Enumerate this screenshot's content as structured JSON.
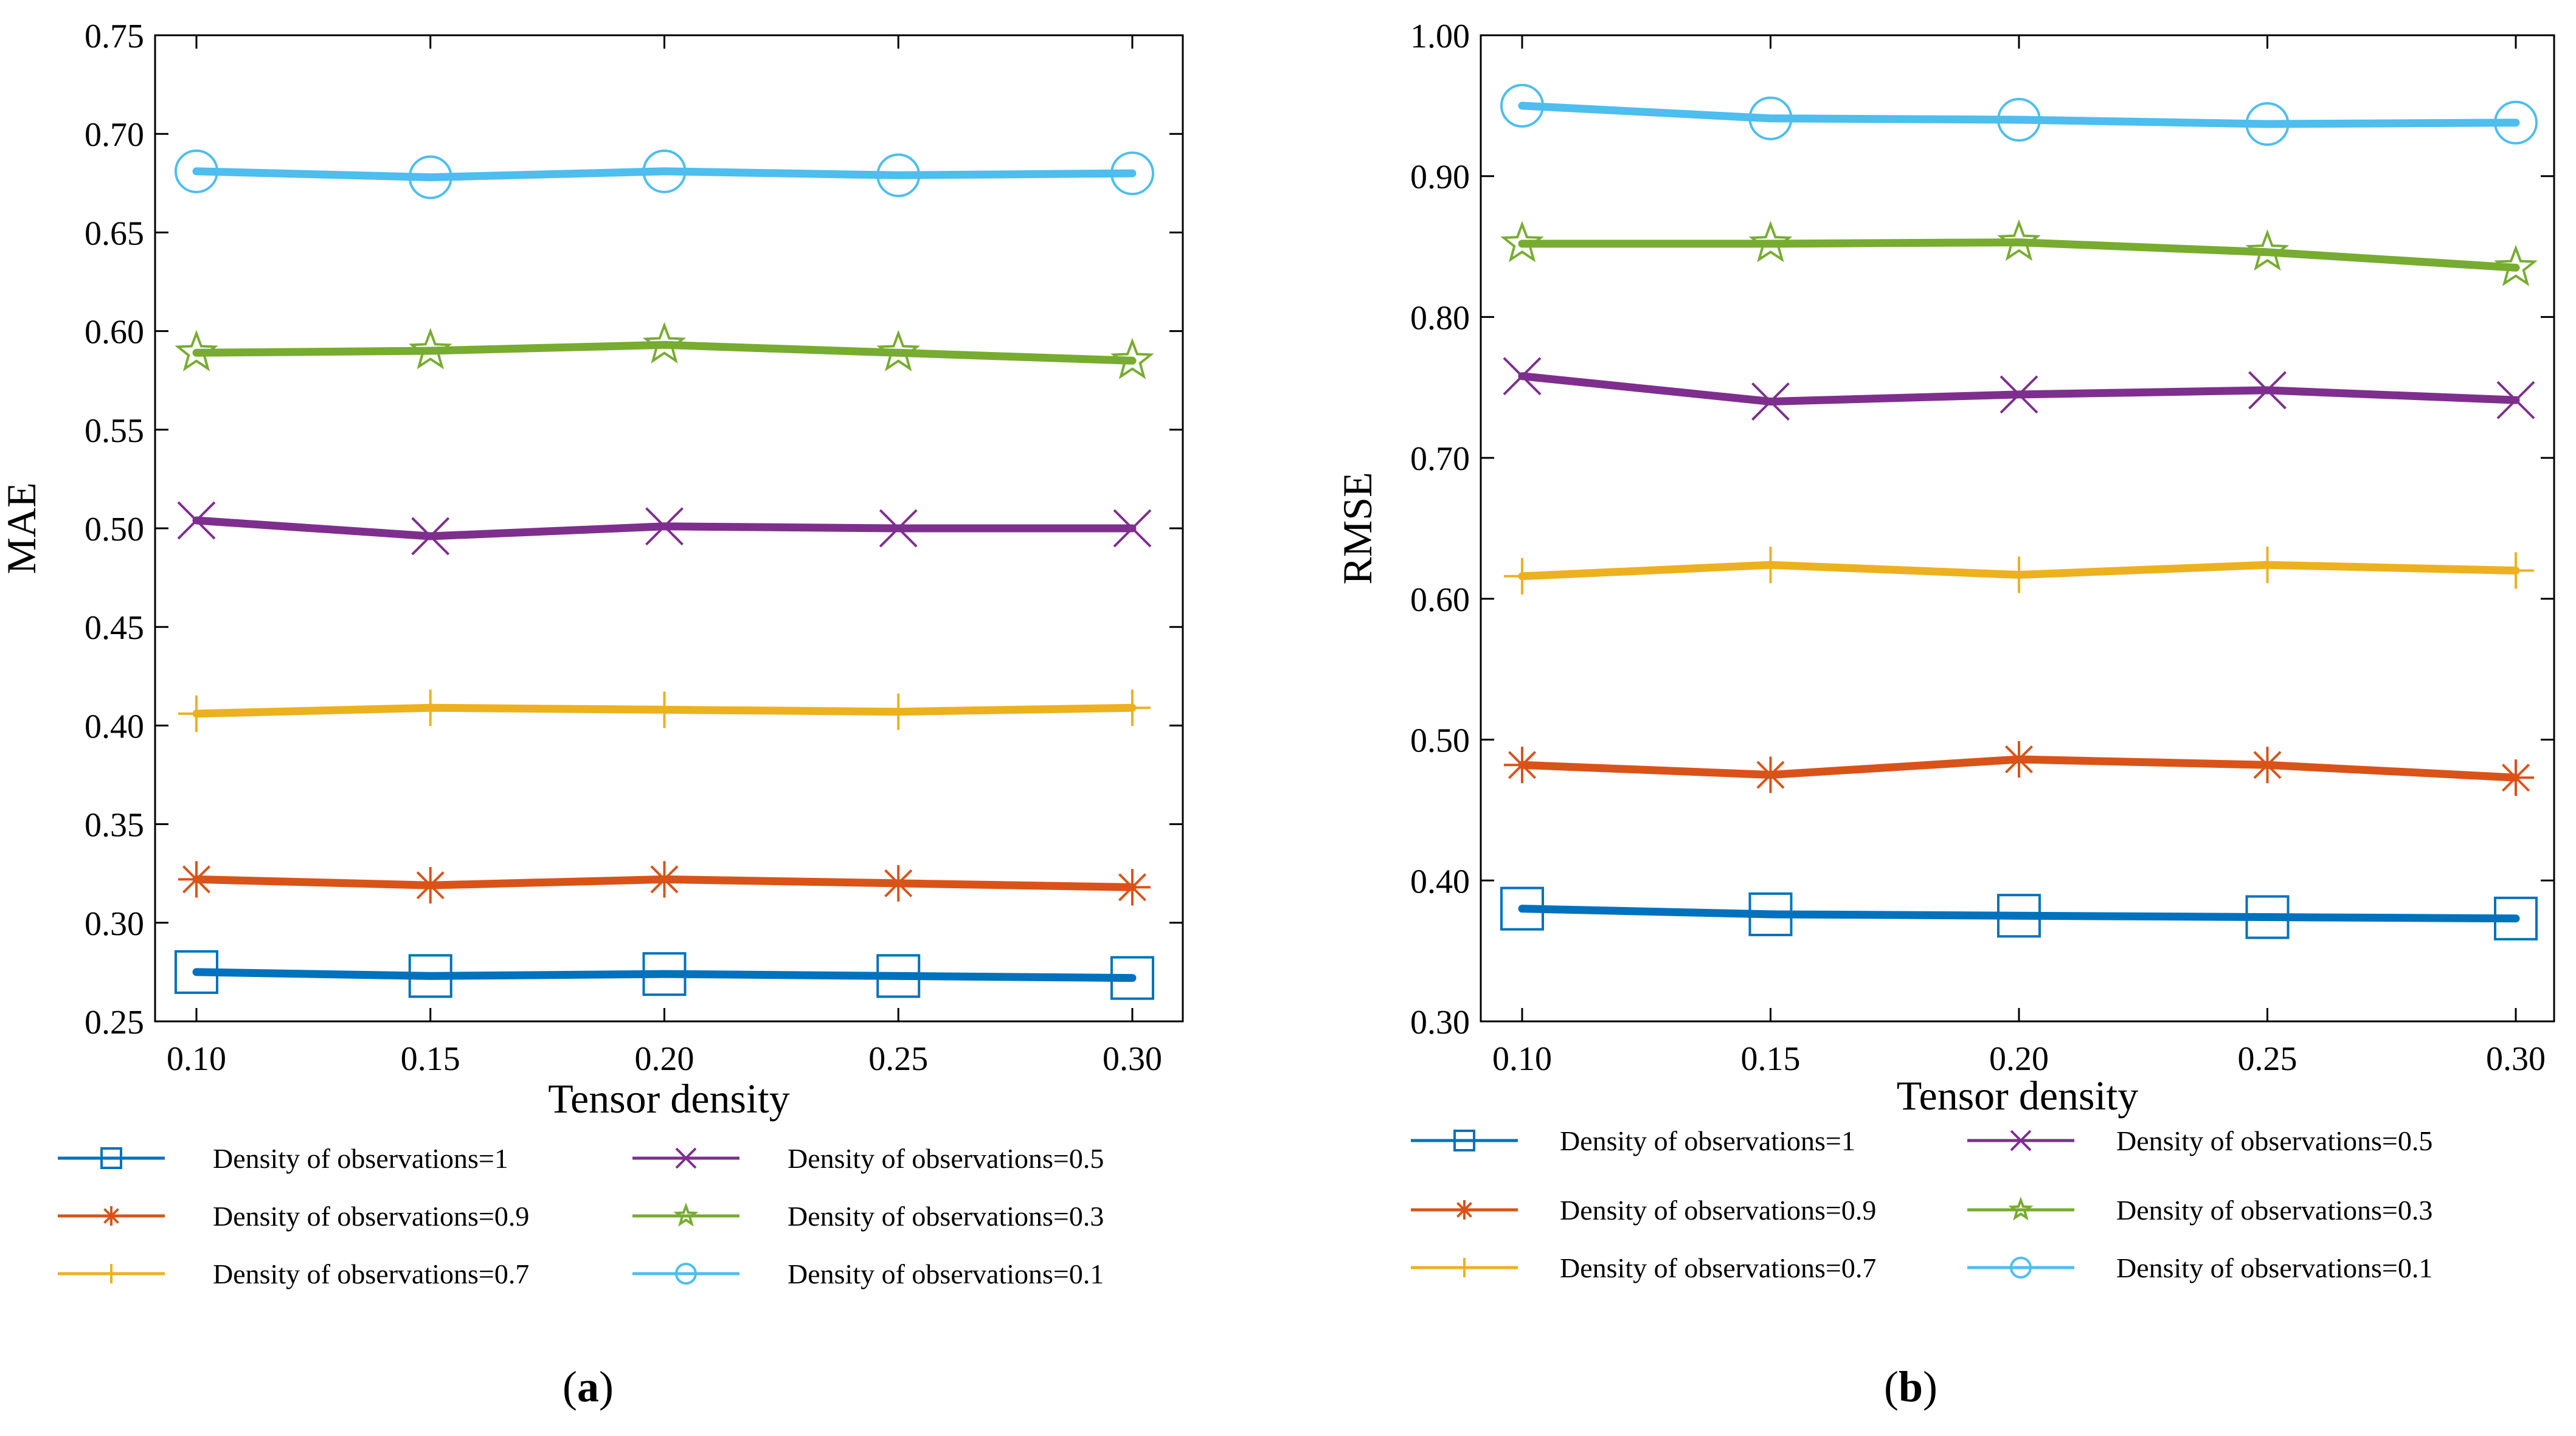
{
  "series_styles": [
    {
      "key": "obs1",
      "marker": "square",
      "color": "#0072BD"
    },
    {
      "key": "obs09",
      "marker": "asterisk",
      "color": "#D95319"
    },
    {
      "key": "obs07",
      "marker": "plus",
      "color": "#EDB120"
    },
    {
      "key": "obs05",
      "marker": "x",
      "color": "#7E2F8E"
    },
    {
      "key": "obs03",
      "marker": "star",
      "color": "#77AC30"
    },
    {
      "key": "obs01",
      "marker": "circle",
      "color": "#4DBEEE"
    }
  ],
  "chart_data": [
    {
      "type": "line",
      "panel_label": "a",
      "title": "",
      "xlabel": "Tensor density",
      "ylabel": "MAE",
      "x": [
        0.1,
        0.15,
        0.2,
        0.25,
        0.3
      ],
      "x_tick_labels": [
        "0.10",
        "0.15",
        "0.20",
        "0.25",
        "0.30"
      ],
      "xlim": [
        0.09,
        0.31
      ],
      "ylim": [
        0.25,
        0.75
      ],
      "y_ticks": [
        0.25,
        0.3,
        0.35,
        0.4,
        0.45,
        0.5,
        0.55,
        0.6,
        0.65,
        0.7,
        0.75
      ],
      "y_tick_labels": [
        "0.25",
        "0.30",
        "0.35",
        "0.40",
        "0.45",
        "0.50",
        "0.55",
        "0.60",
        "0.65",
        "0.70",
        "0.75"
      ],
      "grid": false,
      "series": [
        {
          "key": "obs1",
          "name": "Density of observations=1",
          "values": [
            0.275,
            0.273,
            0.274,
            0.273,
            0.272
          ]
        },
        {
          "key": "obs09",
          "name": "Density of observations=0.9",
          "values": [
            0.322,
            0.319,
            0.322,
            0.32,
            0.318
          ]
        },
        {
          "key": "obs07",
          "name": "Density of observations=0.7",
          "values": [
            0.406,
            0.409,
            0.408,
            0.407,
            0.409
          ]
        },
        {
          "key": "obs05",
          "name": "Density of observations=0.5",
          "values": [
            0.504,
            0.496,
            0.501,
            0.5,
            0.5
          ]
        },
        {
          "key": "obs03",
          "name": "Density of observations=0.3",
          "values": [
            0.589,
            0.59,
            0.593,
            0.589,
            0.585
          ]
        },
        {
          "key": "obs01",
          "name": "Density of observations=0.1",
          "values": [
            0.681,
            0.678,
            0.681,
            0.679,
            0.68
          ]
        }
      ]
    },
    {
      "type": "line",
      "panel_label": "b",
      "title": "",
      "xlabel": "Tensor density",
      "ylabel": "RMSE",
      "x": [
        0.1,
        0.15,
        0.2,
        0.25,
        0.3
      ],
      "x_tick_labels": [
        "0.10",
        "0.15",
        "0.20",
        "0.25",
        "0.30"
      ],
      "xlim": [
        0.09,
        0.31
      ],
      "ylim": [
        0.3,
        1.0
      ],
      "y_ticks": [
        0.3,
        0.4,
        0.5,
        0.6,
        0.7,
        0.8,
        0.9,
        1.0
      ],
      "y_tick_labels": [
        "0.30",
        "0.40",
        "0.50",
        "0.60",
        "0.70",
        "0.80",
        "0.90",
        "1.00"
      ],
      "grid": false,
      "series": [
        {
          "key": "obs1",
          "name": "Density of observations=1",
          "values": [
            0.38,
            0.376,
            0.375,
            0.374,
            0.373
          ]
        },
        {
          "key": "obs09",
          "name": "Density of observations=0.9",
          "values": [
            0.482,
            0.475,
            0.486,
            0.482,
            0.473
          ]
        },
        {
          "key": "obs07",
          "name": "Density of observations=0.7",
          "values": [
            0.616,
            0.624,
            0.617,
            0.624,
            0.62
          ]
        },
        {
          "key": "obs05",
          "name": "Density of observations=0.5",
          "values": [
            0.758,
            0.74,
            0.745,
            0.748,
            0.741
          ]
        },
        {
          "key": "obs03",
          "name": "Density of observations=0.3",
          "values": [
            0.852,
            0.852,
            0.853,
            0.846,
            0.835
          ]
        },
        {
          "key": "obs01",
          "name": "Density of observations=0.1",
          "values": [
            0.95,
            0.941,
            0.94,
            0.937,
            0.938
          ]
        }
      ]
    }
  ]
}
